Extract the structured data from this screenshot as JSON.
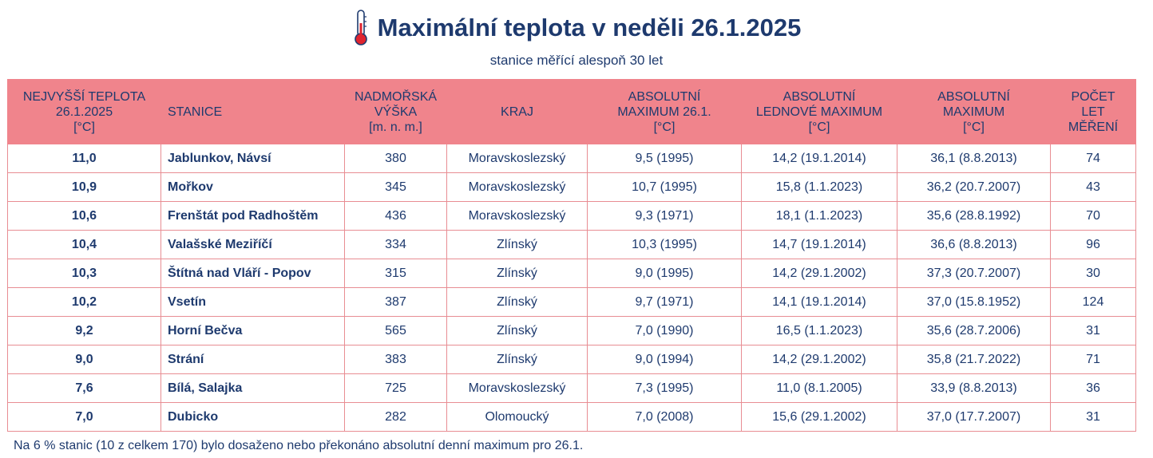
{
  "title": "Maximální teplota v neděli 26.1.2025",
  "subtitle": "stanice měřící alespoň 30 let",
  "headers": {
    "temp": [
      "NEJVYŠŠÍ TEPLOTA",
      "26.1.2025",
      "[°C]"
    ],
    "station": [
      "STANICE"
    ],
    "altitude": [
      "NADMOŘSKÁ",
      "VÝŠKA",
      "[m. n. m.]"
    ],
    "region": [
      "KRAJ"
    ],
    "abs_max_day": [
      "ABSOLUTNÍ",
      "MAXIMUM 26.1.",
      "[°C]"
    ],
    "abs_max_jan": [
      "ABSOLUTNÍ",
      "LEDNOVÉ MAXIMUM",
      "[°C]"
    ],
    "abs_max": [
      "ABSOLUTNÍ",
      "MAXIMUM",
      "[°C]"
    ],
    "years": [
      "POČET",
      "LET",
      "MĚŘENÍ"
    ]
  },
  "rows": [
    [
      "11,0",
      "Jablunkov, Návsí",
      "380",
      "Moravskoslezský",
      "9,5 (1995)",
      "14,2 (19.1.2014)",
      "36,1 (8.8.2013)",
      "74"
    ],
    [
      "10,9",
      "Mořkov",
      "345",
      "Moravskoslezský",
      "10,7 (1995)",
      "15,8 (1.1.2023)",
      "36,2 (20.7.2007)",
      "43"
    ],
    [
      "10,6",
      "Frenštát pod Radhoštěm",
      "436",
      "Moravskoslezský",
      "9,3 (1971)",
      "18,1 (1.1.2023)",
      "35,6 (28.8.1992)",
      "70"
    ],
    [
      "10,4",
      "Valašské Meziříčí",
      "334",
      "Zlínský",
      "10,3 (1995)",
      "14,7 (19.1.2014)",
      "36,6 (8.8.2013)",
      "96"
    ],
    [
      "10,3",
      "Štítná nad Vláří - Popov",
      "315",
      "Zlínský",
      "9,0 (1995)",
      "14,2 (29.1.2002)",
      "37,3 (20.7.2007)",
      "30"
    ],
    [
      "10,2",
      "Vsetín",
      "387",
      "Zlínský",
      "9,7 (1971)",
      "14,1 (19.1.2014)",
      "37,0 (15.8.1952)",
      "124"
    ],
    [
      "9,2",
      "Horní Bečva",
      "565",
      "Zlínský",
      "7,0 (1990)",
      "16,5 (1.1.2023)",
      "35,6 (28.7.2006)",
      "31"
    ],
    [
      "9,0",
      "Strání",
      "383",
      "Zlínský",
      "9,0 (1994)",
      "14,2 (29.1.2002)",
      "35,8 (21.7.2022)",
      "71"
    ],
    [
      "7,6",
      "Bílá, Salajka",
      "725",
      "Moravskoslezský",
      "7,3 (1995)",
      "11,0 (8.1.2005)",
      "33,9 (8.8.2013)",
      "36"
    ],
    [
      "7,0",
      "Dubicko",
      "282",
      "Olomoucký",
      "7,0 (2008)",
      "15,6 (29.1.2002)",
      "37,0 (17.7.2007)",
      "31"
    ]
  ],
  "footnote": "Na 6 % stanic (10 z celkem 170) bylo dosaženo nebo překonáno absolutní denní maximum pro 26.1.",
  "colors": {
    "header_bg": "#f0848c",
    "text": "#1e3a6e",
    "grid": "#e88d93",
    "thermometer": "#e0242f"
  },
  "icons": {
    "title": "thermometer-icon"
  }
}
